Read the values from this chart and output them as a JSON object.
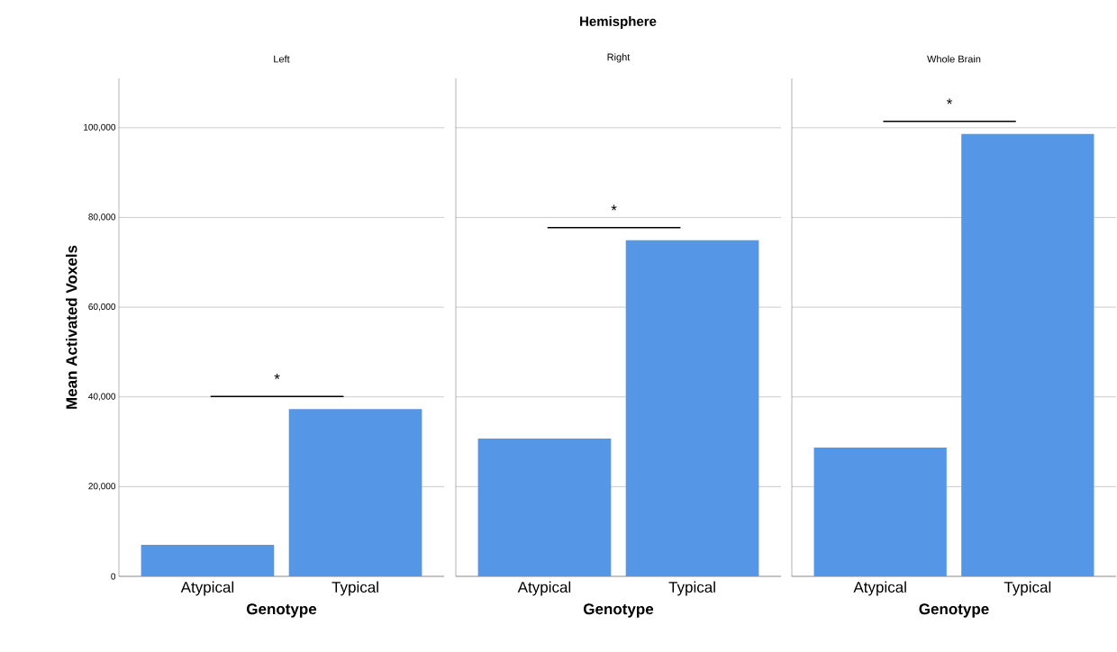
{
  "chart_data": [
    {
      "type": "bar",
      "subtitle": "Left",
      "xlabel": "Genotype",
      "ylabel": "Mean Activated Voxels",
      "categories": [
        "Atypical",
        "Typical"
      ],
      "values": [
        7000,
        37300
      ],
      "color": "#5596e6",
      "ylim": [
        0,
        111000
      ],
      "yticks": [
        0,
        {
          "value": 20000,
          "label": "20,000"
        },
        {
          "value": 40000,
          "label": "40,000"
        },
        {
          "value": 60000,
          "label": "60,000"
        },
        {
          "value": 80000,
          "label": "80,000"
        },
        {
          "value": 100000,
          "label": "100,000"
        }
      ],
      "grid": "y",
      "annotations": [
        "*"
      ]
    },
    {
      "type": "bar",
      "title": "Hemisphere",
      "subtitle": "Right",
      "xlabel": "Genotype",
      "categories": [
        "Atypical",
        "Typical"
      ],
      "values": [
        30700,
        74900
      ],
      "color": "#5596e6",
      "ylim": [
        0,
        111000
      ],
      "yticks": [
        {
          "value": 0,
          "label": null
        },
        {
          "value": 20000,
          "label": null
        },
        {
          "value": 40000,
          "label": null
        },
        {
          "value": 60000,
          "label": null
        },
        {
          "value": 80000,
          "label": null
        },
        {
          "value": 100000,
          "label": null
        }
      ],
      "grid": "y",
      "tick_labels": "x",
      "annotations": [
        "*"
      ]
    },
    {
      "type": "bar",
      "subtitle": "Whole Brain",
      "xlabel": "Genotype",
      "categories": [
        "Atypical",
        "Typical"
      ],
      "values": [
        28700,
        98600
      ],
      "color": "#5596e6",
      "ylim": [
        0,
        111000
      ],
      "yticks": [
        {
          "value": 0,
          "label": null
        },
        {
          "value": 20000,
          "label": null
        },
        {
          "value": 40000,
          "label": null
        },
        {
          "value": 60000,
          "label": null
        },
        {
          "value": 80000,
          "label": null
        },
        {
          "value": 100000,
          "label": null
        }
      ],
      "grid": "y",
      "tick_labels": "x",
      "annotations": [
        "*"
      ]
    }
  ]
}
